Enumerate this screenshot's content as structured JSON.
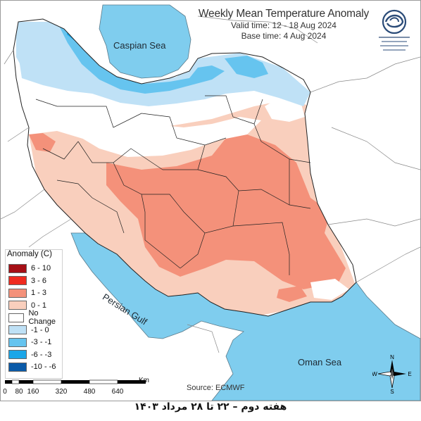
{
  "title": {
    "main": "Weekly Mean Temperature Anomaly",
    "valid_time": "Valid time: 12 - 18 Aug 2024",
    "base_time": "Base time: 4 Aug 2024"
  },
  "seas": {
    "caspian": "Caspian Sea",
    "persian_gulf": "Persian Gulf",
    "oman": "Oman Sea"
  },
  "legend": {
    "title": "Anomaly (C)",
    "items": [
      {
        "label": "6 - 10",
        "color": "#a50f15"
      },
      {
        "label": "3 - 6",
        "color": "#ef2b1f"
      },
      {
        "label": "1 - 3",
        "color": "#f4917a"
      },
      {
        "label": "0 - 1",
        "color": "#f9cfbd"
      },
      {
        "label": "No Change",
        "color": "#ffffff"
      },
      {
        "label": "-1 - 0",
        "color": "#bfe1f6"
      },
      {
        "label": "-3 - -1",
        "color": "#66c4ef"
      },
      {
        "label": "-6 - -3",
        "color": "#1aa6e8"
      },
      {
        "label": "-10 - -6",
        "color": "#0a5aa8"
      }
    ]
  },
  "scale_bar": {
    "unit": "Km",
    "ticks": [
      "0",
      "80",
      "160",
      "320",
      "480",
      "640"
    ]
  },
  "source": "Source: ECMWF",
  "compass": {
    "n": "N",
    "s": "S",
    "e": "E",
    "w": "W"
  },
  "caption": "هفته دوم – ۲۲ تا ۲۸ مرداد ۱۴۰۳",
  "colors": {
    "sea": "#7fcdee",
    "land_outside": "#ffffff",
    "no_change": "#ffffff",
    "anom_0_1": "#f9cfbd",
    "anom_1_3": "#f4917a",
    "neg_1_0": "#bfe1f6",
    "neg_3_1": "#66c4ef",
    "neg_6_3": "#1aa6e8"
  }
}
